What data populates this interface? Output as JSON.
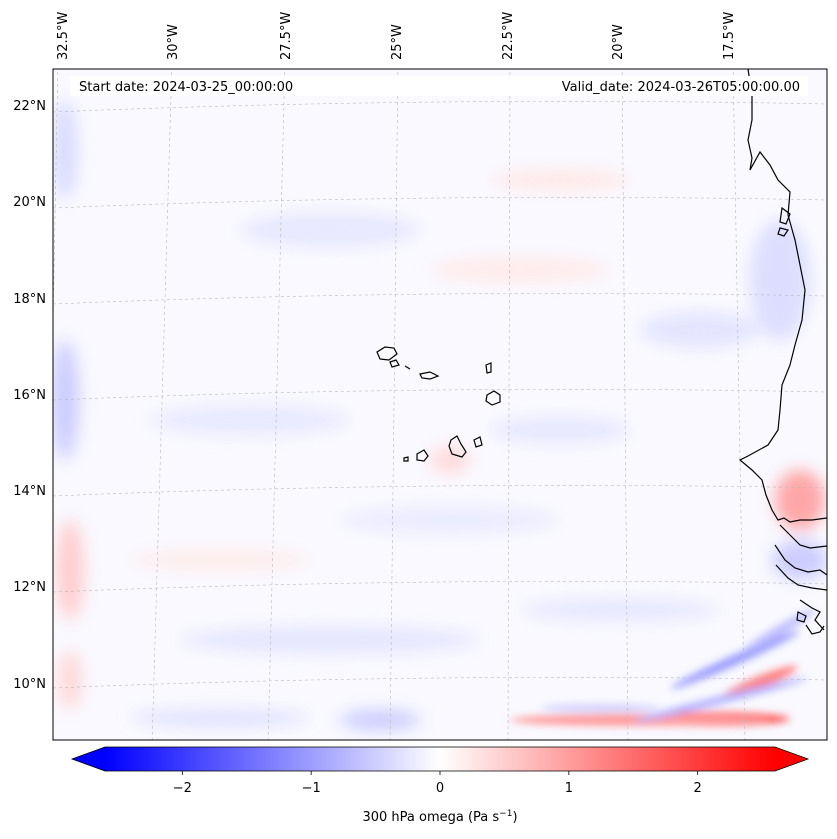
{
  "map": {
    "start_date": "Start date: 2024-03-25_00:00:00",
    "valid_date": "Valid_date: 2024-03-26T05:00:00.00",
    "lon_labels": [
      "32.5°W",
      "30°W",
      "27.5°W",
      "25°W",
      "22.5°W",
      "20°W",
      "17.5°W"
    ],
    "lat_labels": [
      "22°N",
      "20°N",
      "18°N",
      "16°N",
      "14°N",
      "12°N",
      "10°N"
    ],
    "colorbar": {
      "label": "300 hPa omega (Pa s",
      "label_sup": "−1",
      "label_end": ")",
      "ticks": [
        "−2",
        "−1",
        "0",
        "1",
        "2"
      ],
      "tick_values": [
        -2,
        -1,
        0,
        1,
        2
      ],
      "range": [
        -2.6,
        2.6
      ],
      "cmap": "bwr",
      "extend": "both"
    },
    "colors": {
      "negative": "#0000ff",
      "zero": "#ffffff",
      "positive": "#ff0000"
    }
  }
}
